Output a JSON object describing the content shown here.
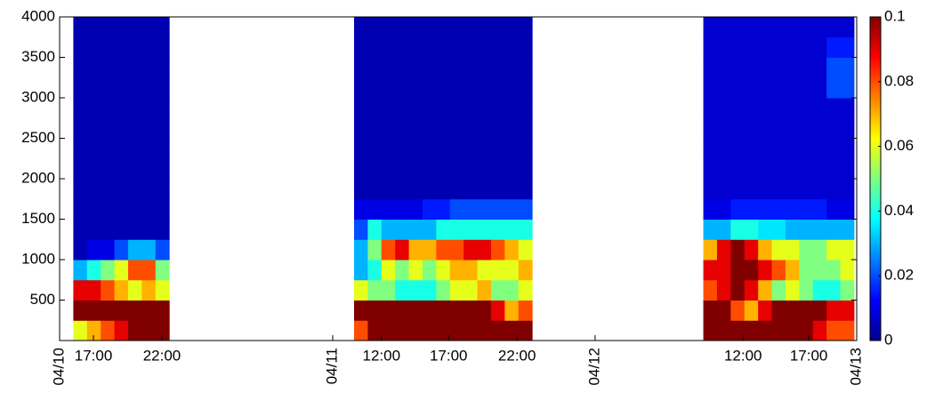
{
  "chart_data": {
    "type": "heatmap",
    "xlim": [
      0,
      58.2
    ],
    "ylim": [
      0,
      4000
    ],
    "xticks": [
      {
        "value": 2.47,
        "label": "17:00"
      },
      {
        "value": 7.47,
        "label": "22:00"
      },
      {
        "value": 23.5,
        "label": "12:00"
      },
      {
        "value": 28.4,
        "label": "17:00"
      },
      {
        "value": 33.4,
        "label": "22:00"
      },
      {
        "value": 49.9,
        "label": "12:00"
      },
      {
        "value": 54.7,
        "label": "17:00"
      }
    ],
    "date_ticks": [
      {
        "value": 0,
        "label": "04/10"
      },
      {
        "value": 19.94,
        "label": "04/11"
      },
      {
        "value": 39.1,
        "label": "04/12"
      },
      {
        "value": 58.2,
        "label": "04/13"
      }
    ],
    "yticks": [
      500,
      1000,
      1500,
      2000,
      2500,
      3000,
      3500,
      4000
    ],
    "clim": [
      0,
      0.1
    ],
    "cticks": [
      0,
      0.02,
      0.04,
      0.06,
      0.08,
      0.1
    ],
    "colormap": "jet",
    "x": [
      1.5,
      2.5,
      3.5,
      4.5,
      5.5,
      6.5,
      7.5,
      22,
      23,
      24,
      25,
      26,
      27,
      28,
      29,
      30,
      31,
      32,
      33,
      34,
      47.5,
      48.5,
      49.5,
      50.5,
      51.5,
      52.5,
      53.5,
      54.5,
      55.5,
      56.5,
      57.5
    ],
    "y": [
      125,
      375,
      625,
      875,
      1125,
      1375,
      1625,
      1875,
      2125,
      2375,
      2625,
      2875,
      3125,
      3375,
      3625,
      3875
    ],
    "z": [
      [
        0.06,
        0.1,
        0.09,
        0.03,
        0.005,
        0.005,
        0.005,
        0.005,
        0.005,
        0.005,
        0.005,
        0.005,
        0.005,
        0.005,
        0.005,
        0.005
      ],
      [
        0.07,
        0.1,
        0.09,
        0.04,
        0.01,
        0.005,
        0.005,
        0.005,
        0.005,
        0.005,
        0.005,
        0.005,
        0.005,
        0.005,
        0.005,
        0.005
      ],
      [
        0.08,
        0.1,
        0.08,
        0.05,
        0.01,
        0.005,
        0.005,
        0.005,
        0.005,
        0.005,
        0.005,
        0.005,
        0.005,
        0.005,
        0.005,
        0.005
      ],
      [
        0.09,
        0.1,
        0.07,
        0.06,
        0.02,
        0.005,
        0.005,
        0.005,
        0.005,
        0.005,
        0.005,
        0.005,
        0.005,
        0.005,
        0.005,
        0.005
      ],
      [
        0.1,
        0.1,
        0.06,
        0.08,
        0.03,
        0.005,
        0.005,
        0.005,
        0.005,
        0.005,
        0.005,
        0.005,
        0.005,
        0.005,
        0.005,
        0.005
      ],
      [
        0.1,
        0.1,
        0.07,
        0.08,
        0.03,
        0.005,
        0.005,
        0.005,
        0.005,
        0.005,
        0.005,
        0.005,
        0.005,
        0.005,
        0.005,
        0.005
      ],
      [
        0.1,
        0.1,
        0.06,
        0.05,
        0.02,
        0.005,
        0.005,
        0.005,
        0.005,
        0.005,
        0.005,
        0.005,
        0.005,
        0.005,
        0.005,
        0.005
      ],
      [
        0.08,
        0.1,
        0.06,
        0.03,
        0.03,
        0.02,
        0.01,
        0.005,
        0.005,
        0.005,
        0.005,
        0.005,
        0.005,
        0.005,
        0.005,
        0.005
      ],
      [
        0.1,
        0.1,
        0.05,
        0.04,
        0.05,
        0.04,
        0.01,
        0.005,
        0.005,
        0.005,
        0.005,
        0.005,
        0.005,
        0.005,
        0.005,
        0.005
      ],
      [
        0.1,
        0.1,
        0.05,
        0.06,
        0.08,
        0.03,
        0.01,
        0.005,
        0.005,
        0.005,
        0.005,
        0.005,
        0.005,
        0.005,
        0.005,
        0.005
      ],
      [
        0.1,
        0.1,
        0.04,
        0.05,
        0.09,
        0.03,
        0.01,
        0.005,
        0.005,
        0.005,
        0.005,
        0.005,
        0.005,
        0.005,
        0.005,
        0.005
      ],
      [
        0.1,
        0.1,
        0.04,
        0.06,
        0.07,
        0.03,
        0.01,
        0.005,
        0.005,
        0.005,
        0.005,
        0.005,
        0.005,
        0.005,
        0.005,
        0.005
      ],
      [
        0.1,
        0.1,
        0.04,
        0.05,
        0.07,
        0.03,
        0.015,
        0.005,
        0.005,
        0.005,
        0.005,
        0.005,
        0.005,
        0.005,
        0.005,
        0.005
      ],
      [
        0.1,
        0.1,
        0.05,
        0.06,
        0.08,
        0.04,
        0.015,
        0.005,
        0.005,
        0.005,
        0.005,
        0.005,
        0.005,
        0.005,
        0.005,
        0.005
      ],
      [
        0.1,
        0.1,
        0.06,
        0.07,
        0.08,
        0.04,
        0.02,
        0.005,
        0.005,
        0.005,
        0.005,
        0.005,
        0.005,
        0.005,
        0.005,
        0.005
      ],
      [
        0.1,
        0.1,
        0.06,
        0.07,
        0.09,
        0.04,
        0.02,
        0.005,
        0.005,
        0.005,
        0.005,
        0.005,
        0.005,
        0.005,
        0.005,
        0.005
      ],
      [
        0.1,
        0.1,
        0.07,
        0.06,
        0.09,
        0.04,
        0.02,
        0.005,
        0.005,
        0.005,
        0.005,
        0.005,
        0.005,
        0.005,
        0.005,
        0.005
      ],
      [
        0.1,
        0.09,
        0.05,
        0.06,
        0.08,
        0.04,
        0.02,
        0.005,
        0.005,
        0.005,
        0.005,
        0.005,
        0.005,
        0.005,
        0.005,
        0.005
      ],
      [
        0.1,
        0.07,
        0.05,
        0.06,
        0.07,
        0.04,
        0.02,
        0.005,
        0.005,
        0.005,
        0.005,
        0.005,
        0.005,
        0.005,
        0.005,
        0.005
      ],
      [
        0.1,
        0.08,
        0.06,
        0.07,
        0.06,
        0.04,
        0.02,
        0.005,
        0.005,
        0.005,
        0.005,
        0.005,
        0.005,
        0.005,
        0.005,
        0.005
      ],
      [
        0.1,
        0.1,
        0.08,
        0.09,
        0.07,
        0.03,
        0.01,
        0.008,
        0.008,
        0.008,
        0.008,
        0.008,
        0.008,
        0.008,
        0.008,
        0.008
      ],
      [
        0.1,
        0.1,
        0.09,
        0.09,
        0.09,
        0.03,
        0.01,
        0.008,
        0.008,
        0.008,
        0.008,
        0.008,
        0.008,
        0.008,
        0.008,
        0.008
      ],
      [
        0.1,
        0.08,
        0.1,
        0.1,
        0.1,
        0.04,
        0.015,
        0.008,
        0.008,
        0.008,
        0.008,
        0.008,
        0.008,
        0.008,
        0.008,
        0.008
      ],
      [
        0.1,
        0.07,
        0.09,
        0.1,
        0.09,
        0.04,
        0.015,
        0.008,
        0.008,
        0.008,
        0.008,
        0.008,
        0.008,
        0.008,
        0.008,
        0.008
      ],
      [
        0.1,
        0.09,
        0.07,
        0.09,
        0.07,
        0.035,
        0.015,
        0.008,
        0.008,
        0.008,
        0.008,
        0.008,
        0.008,
        0.008,
        0.008,
        0.008
      ],
      [
        0.1,
        0.1,
        0.05,
        0.08,
        0.06,
        0.035,
        0.015,
        0.008,
        0.008,
        0.008,
        0.008,
        0.008,
        0.008,
        0.008,
        0.008,
        0.008
      ],
      [
        0.1,
        0.1,
        0.06,
        0.07,
        0.06,
        0.03,
        0.015,
        0.008,
        0.008,
        0.008,
        0.008,
        0.008,
        0.008,
        0.008,
        0.008,
        0.008
      ],
      [
        0.1,
        0.1,
        0.05,
        0.05,
        0.05,
        0.03,
        0.015,
        0.008,
        0.008,
        0.008,
        0.008,
        0.008,
        0.008,
        0.008,
        0.008,
        0.008
      ],
      [
        0.09,
        0.1,
        0.04,
        0.05,
        0.05,
        0.03,
        0.015,
        0.008,
        0.008,
        0.008,
        0.008,
        0.008,
        0.008,
        0.008,
        0.008,
        0.008
      ],
      [
        0.08,
        0.09,
        0.04,
        0.05,
        0.06,
        0.03,
        0.01,
        0.008,
        0.008,
        0.008,
        0.008,
        0.008,
        0.02,
        0.02,
        0.015,
        0.008
      ],
      [
        0.08,
        0.09,
        0.05,
        0.06,
        0.06,
        0.03,
        0.01,
        0.008,
        0.008,
        0.008,
        0.008,
        0.008,
        0.02,
        0.02,
        0.015,
        0.008
      ]
    ]
  }
}
